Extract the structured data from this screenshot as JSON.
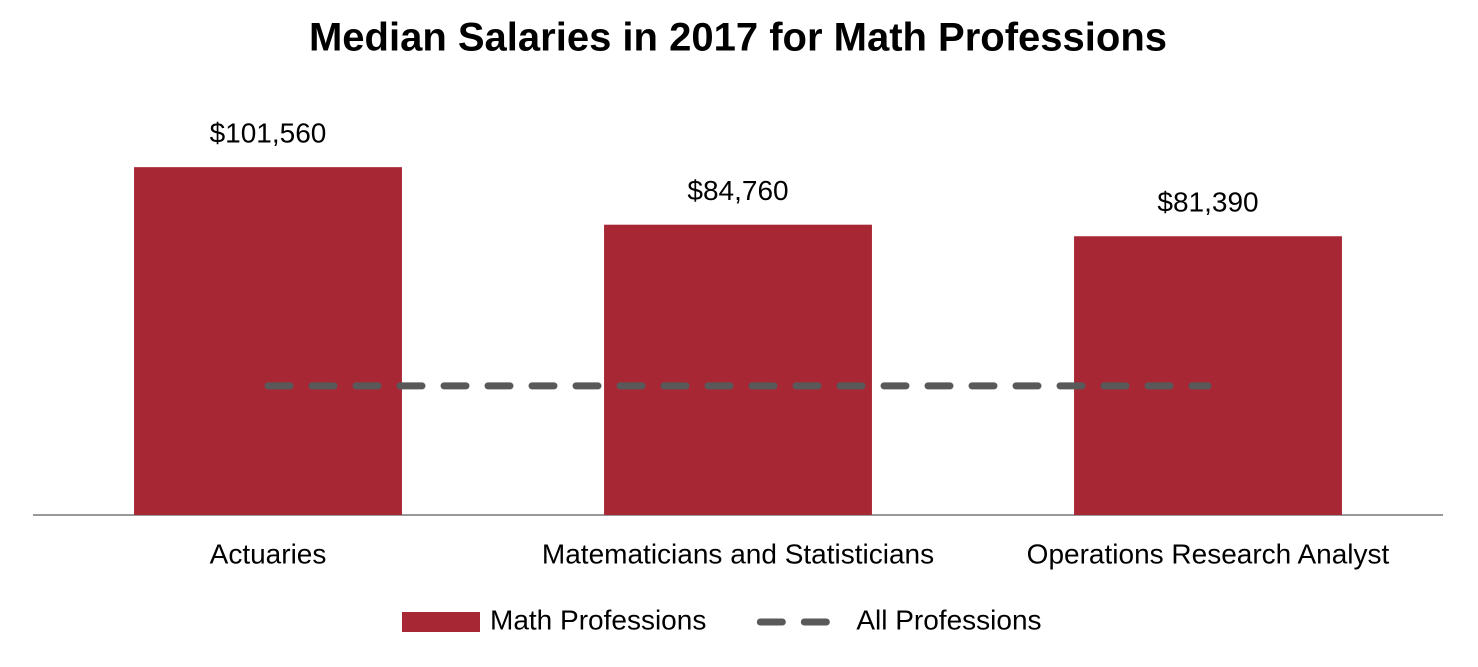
{
  "chart_data": {
    "type": "bar",
    "title": "Median Salaries in 2017 for Math Professions",
    "categories": [
      "Actuaries",
      "Matematicians and Statisticians",
      "Operations Research Analyst"
    ],
    "series": [
      {
        "name": "Math Professions",
        "type": "bar",
        "color": "#a82735",
        "values": [
          101560,
          84760,
          81390
        ],
        "value_labels": [
          "$101,560",
          "$84,760",
          "$81,390"
        ]
      },
      {
        "name": "All Professions",
        "type": "line",
        "color": "#595959",
        "dashed": true,
        "values": [
          37690,
          37690,
          37690
        ]
      }
    ],
    "ylim": [
      0,
      120000
    ],
    "legend": "bottom"
  }
}
